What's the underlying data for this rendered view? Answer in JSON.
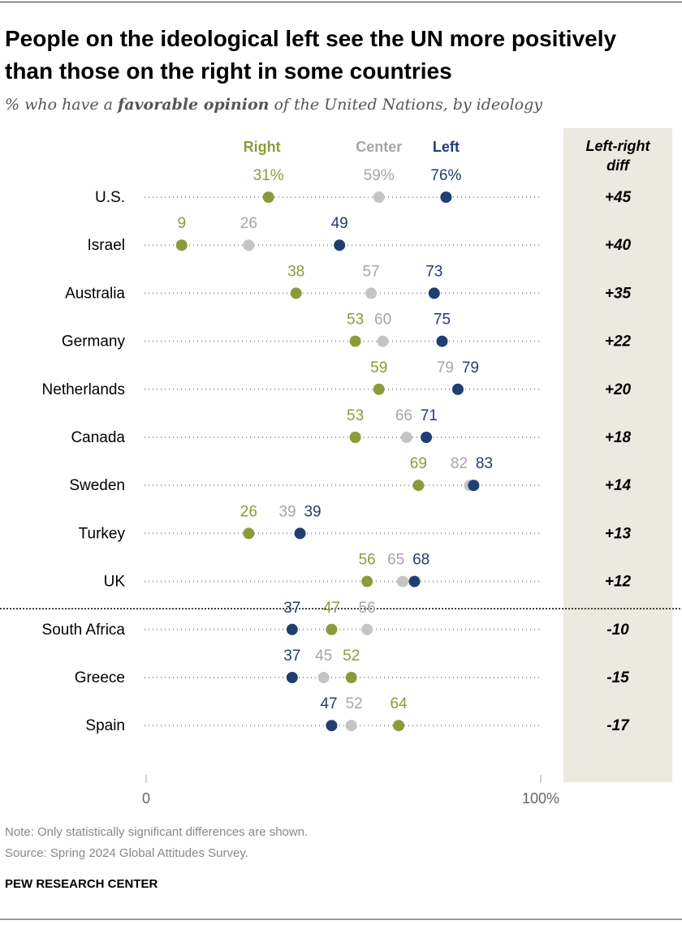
{
  "chart_data": {
    "type": "dot",
    "title": "People on the ideological left see the UN more positively than those on the right in some countries",
    "subtitle": [
      "% who have a ",
      "favorable opinion",
      " of the United Nations, by ideology"
    ],
    "categories": [
      "U.S.",
      "Israel",
      "Australia",
      "Germany",
      "Netherlands",
      "Canada",
      "Sweden",
      "Turkey",
      "UK",
      "South Africa",
      "Greece",
      "Spain"
    ],
    "series": [
      {
        "name": "Right",
        "color": "#8d9a3c",
        "values": [
          31,
          9,
          38,
          53,
          59,
          53,
          69,
          26,
          56,
          47,
          52,
          64
        ],
        "value_labels": [
          "31%",
          "9",
          "38",
          "53",
          "59",
          "53",
          "69",
          "26",
          "56",
          "47",
          "52",
          "64"
        ]
      },
      {
        "name": "Center",
        "color": "#a6a6a6",
        "values": [
          59,
          26,
          57,
          60,
          79,
          66,
          82,
          39,
          65,
          56,
          45,
          52
        ],
        "value_labels": [
          "59%",
          "26",
          "57",
          "60",
          "79",
          "66",
          "82",
          "39",
          "65",
          "56",
          "45",
          "52"
        ]
      },
      {
        "name": "Left",
        "color": "#1f3f73",
        "values": [
          76,
          49,
          73,
          75,
          79,
          71,
          83,
          39,
          68,
          37,
          37,
          47
        ],
        "value_labels": [
          "76%",
          "49",
          "73",
          "75",
          "79",
          "71",
          "83",
          "39",
          "68",
          "37",
          "37",
          "47"
        ]
      }
    ],
    "diff": {
      "title": "Left-right diff",
      "values": [
        45,
        40,
        35,
        22,
        20,
        18,
        14,
        13,
        12,
        -10,
        -15,
        -17
      ],
      "value_labels": [
        "+45",
        "+40",
        "+35",
        "+22",
        "+20",
        "+18",
        "+14",
        "+13",
        "+12",
        "-10",
        "-15",
        "-17"
      ]
    },
    "xlim": [
      0,
      100
    ],
    "xticks": [
      0,
      {
        "value": 100,
        "label": "100%"
      }
    ],
    "note": "Note: Only statistically significant differences are shown.",
    "source": "Source: Spring 2024 Global Attitudes Survey.",
    "credit": "PEW RESEARCH CENTER"
  }
}
